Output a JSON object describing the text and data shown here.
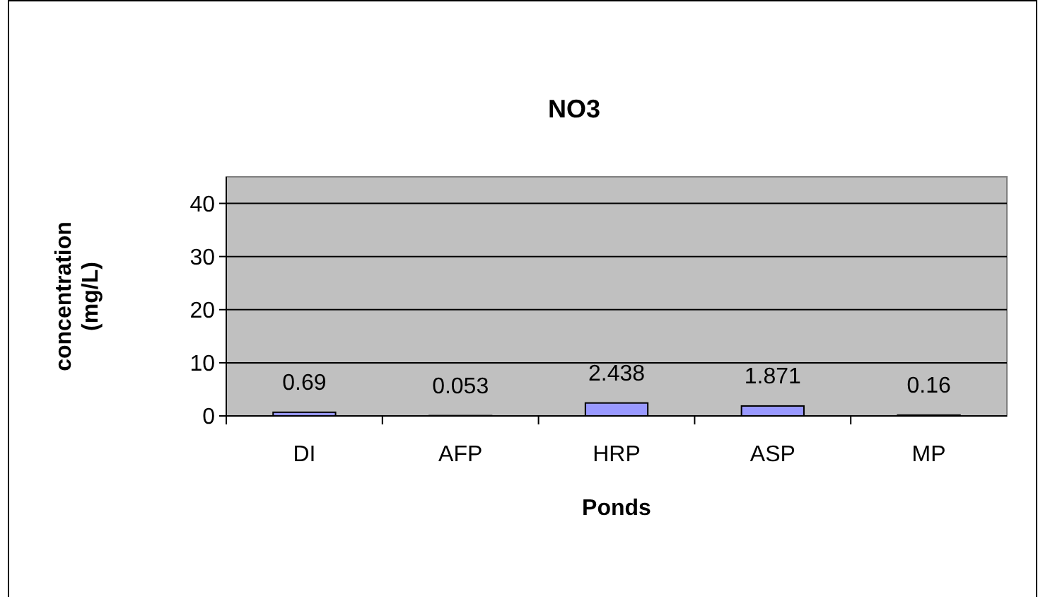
{
  "chart_data": {
    "type": "bar",
    "title": "NO3",
    "xlabel": "Ponds",
    "ylabel": "concentration (mg/L)",
    "categories": [
      "DI",
      "AFP",
      "HRP",
      "ASP",
      "MP"
    ],
    "values": [
      0.69,
      0.053,
      2.438,
      1.871,
      0.16
    ],
    "color": "#9999ff",
    "ylim": [
      0,
      45
    ],
    "yticks": [
      0,
      10,
      20,
      30,
      40
    ],
    "grid": "y",
    "data_labels": true
  }
}
